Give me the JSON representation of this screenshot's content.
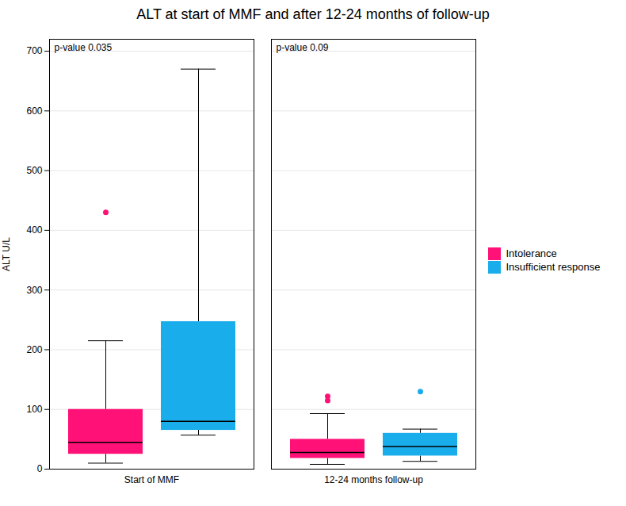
{
  "chart_data": {
    "type": "box",
    "title": "ALT at start of MMF and after 12-24 months of follow-up",
    "y_label": "ALT U/L",
    "categories": [
      "Start of MMF",
      "12-24 months follow-up"
    ],
    "series": [
      {
        "name": "Intolerance",
        "color": "#FF1177",
        "values": [
          {
            "q1": 25,
            "median": 45,
            "q3": 100,
            "whisker_low": 10,
            "whisker_high": 215,
            "outliers": [
              430
            ]
          },
          {
            "q1": 18,
            "median": 28,
            "q3": 50,
            "whisker_low": 8,
            "whisker_high": 93,
            "outliers": [
              115,
              122
            ]
          }
        ]
      },
      {
        "name": "Insufficient response",
        "color": "#1AADEC",
        "values": [
          {
            "q1": 65,
            "median": 80,
            "q3": 247,
            "whisker_low": 57,
            "whisker_high": 670,
            "outliers": []
          },
          {
            "q1": 22,
            "median": 38,
            "q3": 60,
            "whisker_low": 13,
            "whisker_high": 67,
            "outliers": [
              130
            ]
          }
        ]
      }
    ],
    "annotations": [
      {
        "text": "p-value 0.035",
        "category": "Start of MMF"
      },
      {
        "text": "p-value 0.09",
        "category": "12-24 months follow-up"
      }
    ],
    "ylim": [
      0,
      720
    ],
    "yticks": [
      0,
      100,
      200,
      300,
      400,
      500,
      600,
      700
    ],
    "grid": true,
    "legend": "right"
  }
}
